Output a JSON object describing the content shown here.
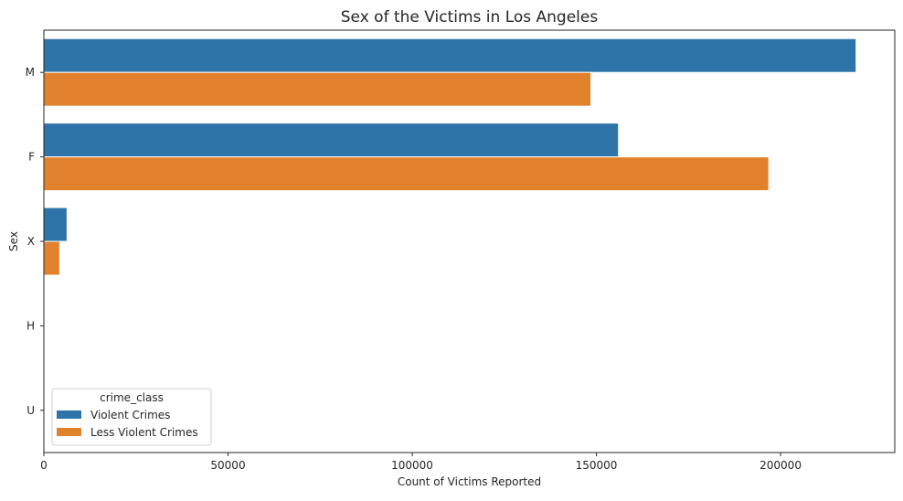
{
  "chart_data": {
    "type": "bar",
    "orientation": "horizontal",
    "title": "Sex of the Victims in Los Angeles",
    "xlabel": "Count of Victims Reported",
    "ylabel": "Sex",
    "categories": [
      "M",
      "F",
      "X",
      "H",
      "U"
    ],
    "series": [
      {
        "name": "Violent Crimes",
        "color": "#2f74a8",
        "values": [
          220500,
          156000,
          6300,
          0,
          0
        ]
      },
      {
        "name": "Less Violent Crimes",
        "color": "#e1812c",
        "values": [
          148500,
          196800,
          4300,
          0,
          0
        ]
      }
    ],
    "xlim": [
      0,
      231000
    ],
    "xticks": [
      0,
      50000,
      100000,
      150000,
      200000
    ],
    "xtick_labels": [
      "0",
      "50000",
      "100000",
      "150000",
      "200000"
    ],
    "grid": false,
    "legend": {
      "title": "crime_class",
      "placement": "lower-left"
    }
  }
}
